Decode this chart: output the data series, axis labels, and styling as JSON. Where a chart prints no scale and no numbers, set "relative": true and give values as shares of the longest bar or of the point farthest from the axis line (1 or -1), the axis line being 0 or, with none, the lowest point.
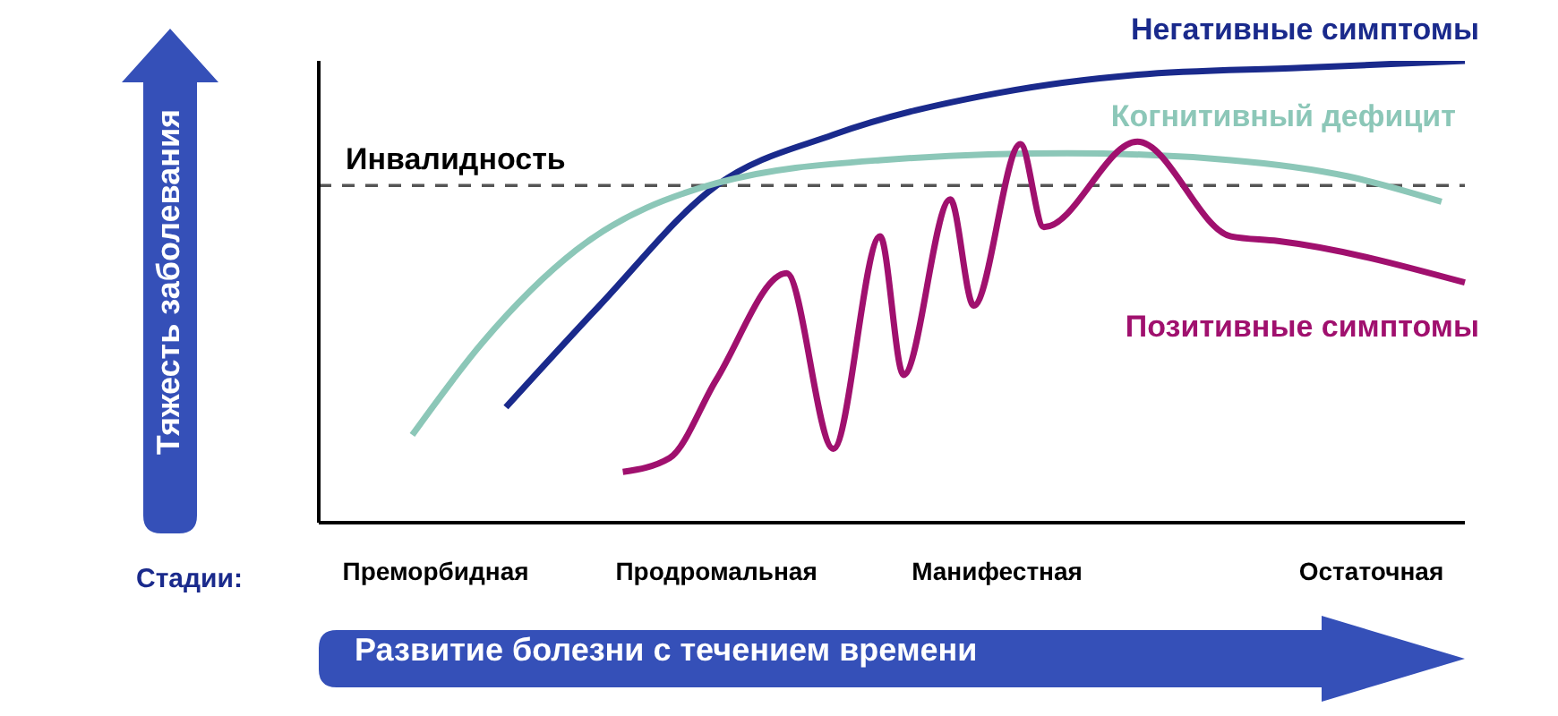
{
  "chart_data": {
    "type": "line",
    "relative": true,
    "xlabel": "Развитие болезни с течением времени",
    "ylabel": "Тяжесть заболевания",
    "categories": [
      null,
      null,
      null,
      null,
      null,
      "Преморбидная",
      null,
      null,
      null,
      null,
      null,
      null,
      null,
      null,
      null,
      null,
      null,
      "Продромальная",
      null,
      null,
      null,
      null,
      null,
      null,
      null,
      null,
      null,
      null,
      null,
      "Манифестная",
      null,
      null,
      null,
      null,
      null,
      null,
      null,
      null,
      null,
      null,
      null,
      null,
      null,
      null,
      null,
      "Остаточная",
      null,
      null,
      null,
      null
    ],
    "annotations": [
      "Стадии:"
    ],
    "ref_lines": [
      {
        "axis": "y",
        "value": 0.73,
        "label": "Инвалидность",
        "color": "#555555",
        "line_style": "dashed"
      }
    ],
    "series": [
      {
        "name": "Негативные симптомы",
        "color": "#1a2a8c",
        "values": [
          null,
          null,
          null,
          null,
          null,
          null,
          null,
          null,
          0.25,
          null,
          null,
          null,
          0.47,
          null,
          null,
          null,
          null,
          0.73,
          null,
          null,
          null,
          null,
          0.84,
          null,
          null,
          null,
          null,
          null,
          null,
          0.93,
          null,
          null,
          null,
          null,
          null,
          0.97,
          null,
          null,
          null,
          null,
          null,
          null,
          0.985,
          null,
          null,
          null,
          null,
          null,
          null,
          1.0
        ]
      },
      {
        "name": "Когнитивный дефицит",
        "color": "#8cc7b8",
        "values": [
          null,
          null,
          null,
          null,
          0.19,
          null,
          null,
          0.39,
          null,
          null,
          null,
          0.59,
          null,
          null,
          null,
          null,
          null,
          0.735,
          null,
          null,
          null,
          null,
          null,
          null,
          0.785,
          null,
          null,
          null,
          null,
          null,
          null,
          null,
          0.8,
          null,
          null,
          null,
          null,
          null,
          null,
          0.785,
          null,
          null,
          null,
          null,
          0.75,
          null,
          null,
          null,
          0.695,
          null
        ]
      },
      {
        "name": "Позитивные симптомы",
        "color": "#a0106e",
        "values": [
          null,
          null,
          null,
          null,
          null,
          null,
          null,
          null,
          null,
          null,
          null,
          null,
          null,
          0.11,
          null,
          0.14,
          null,
          0.31,
          null,
          null,
          0.54,
          null,
          0.16,
          null,
          0.62,
          0.32,
          null,
          0.7,
          0.47,
          null,
          0.82,
          0.64,
          null,
          null,
          null,
          0.825,
          null,
          null,
          null,
          0.62,
          null,
          0.61,
          null,
          null,
          null,
          null,
          null,
          null,
          null,
          0.52
        ]
      }
    ]
  }
}
